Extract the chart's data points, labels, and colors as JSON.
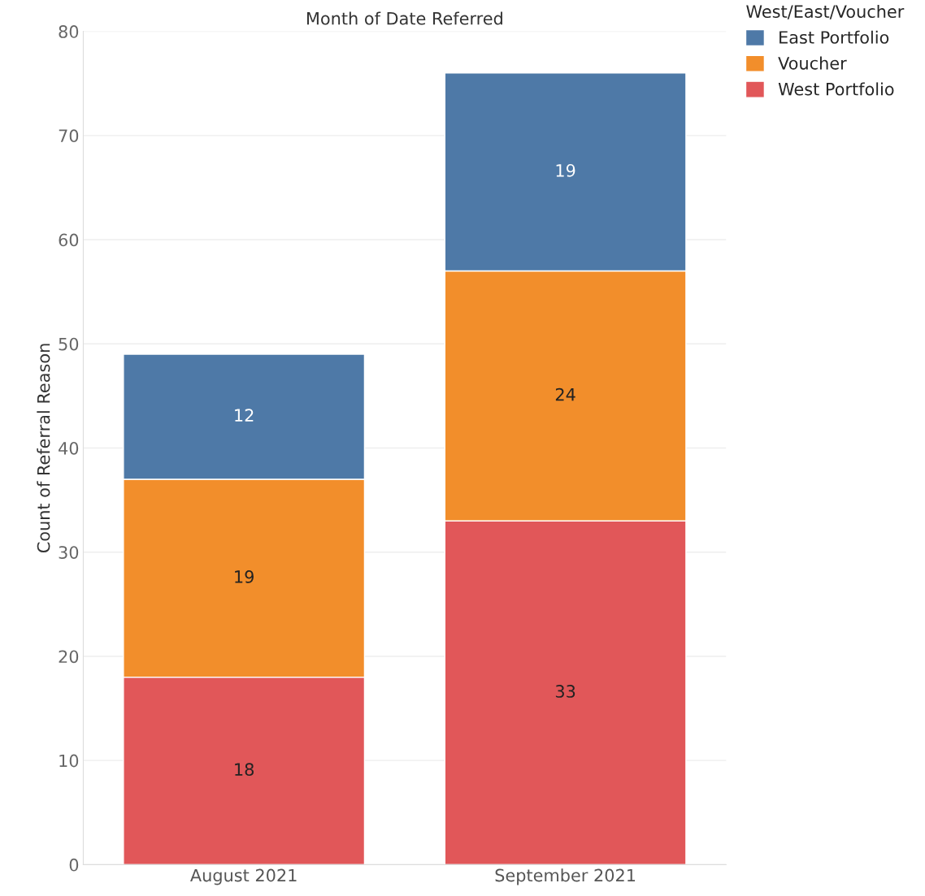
{
  "chart_data": {
    "type": "bar",
    "title": "Month of Date Referred",
    "ylabel": "Count of Referral Reason",
    "legend_title": "West/East/Voucher",
    "categories": [
      "August 2021",
      "September 2021"
    ],
    "series": [
      {
        "name": "West Portfolio",
        "color": "#e15759",
        "values": [
          18,
          33
        ]
      },
      {
        "name": "Voucher",
        "color": "#f28e2b",
        "values": [
          19,
          24
        ]
      },
      {
        "name": "East Portfolio",
        "color": "#4e79a7",
        "values": [
          12,
          19
        ]
      }
    ],
    "stacked": true,
    "ylim": [
      0,
      80
    ],
    "yticks": [
      0,
      10,
      20,
      30,
      40,
      50,
      60,
      70,
      80
    ],
    "grid": "y",
    "legend": "top right",
    "data_labels": true
  }
}
